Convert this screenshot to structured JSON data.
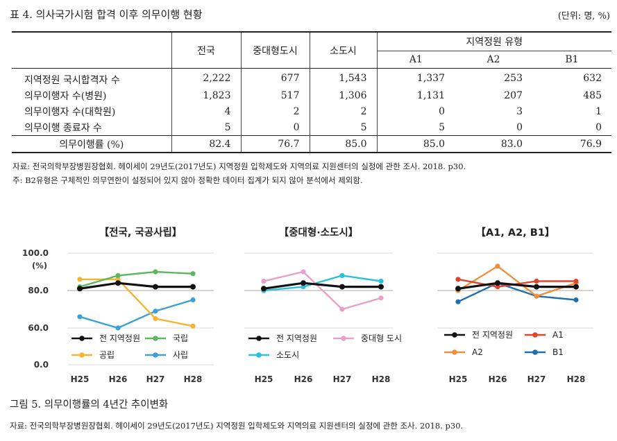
{
  "table": {
    "title": "표 4. 의사국가시험 합격 이후 의무이행 현황",
    "unit": "(단위: 명, %)",
    "headers": [
      "전국",
      "중대형도시",
      "소도시",
      "지역정원 유형"
    ],
    "subheaders": [
      "A1",
      "A2",
      "B1"
    ],
    "rows": [
      {
        "label": "지역정원 국시합격자 수",
        "values": [
          "2,222",
          "677",
          "1,543",
          "1,337",
          "253",
          "632"
        ]
      },
      {
        "label": "의무이행자 수(병원)",
        "values": [
          "1,823",
          "517",
          "1,306",
          "1,131",
          "207",
          "485"
        ]
      },
      {
        "label": "의무이행자 수(대학원)",
        "values": [
          "4",
          "2",
          "2",
          "0",
          "3",
          "1"
        ]
      },
      {
        "label": "의무이행 종료자 수",
        "values": [
          "5",
          "0",
          "5",
          "5",
          "0",
          "0"
        ]
      },
      {
        "label": "의무이행률 (%)",
        "values": [
          "82.4",
          "76.7",
          "85.0",
          "85.0",
          "83.0",
          "76.9"
        ]
      }
    ],
    "source": "자료: 전국의학부장병원장협회. 헤이세이 29년도(2017년도) 지역정원 입학제도와 지역의료 지원센터의 실정에 관한 조사. 2018. p30.",
    "footnote": "주: B2유형은 구체적인 의무연한이 설정되어 있지 않아 정확한 데이터 집계가 되지 않아 분석에서 제외함."
  },
  "figure": {
    "caption": "그림 5. 의무이행률의 4년간 추이변화",
    "source": "자료: 전국의학부장병원장협회. 헤이세이 29년도(2017년도) 지역정원 입학제도와 지역의료 지원센터의 실정에 관한 조사. 2018. p30.",
    "y_ticks": [
      "100.0",
      "80.0",
      "60.0",
      "0.0"
    ],
    "y_unit": "(%)"
  },
  "chart_data": [
    {
      "type": "line",
      "title": "【전국, 국공사립】",
      "categories": [
        "H25",
        "H26",
        "H27",
        "H28"
      ],
      "ylim": [
        0,
        100
      ],
      "series": [
        {
          "name": "전 지역정원",
          "color": "#111111",
          "values": [
            81,
            84,
            82,
            82
          ]
        },
        {
          "name": "국립",
          "color": "#5cb85c",
          "values": [
            82,
            88,
            90,
            89
          ]
        },
        {
          "name": "공립",
          "color": "#f5b331",
          "values": [
            86,
            86,
            65,
            61
          ]
        },
        {
          "name": "사립",
          "color": "#3ba0d8",
          "values": [
            66,
            60,
            69,
            75
          ]
        }
      ],
      "legend": [
        [
          "전 지역정원",
          "국립"
        ],
        [
          "공립",
          "사립"
        ]
      ]
    },
    {
      "type": "line",
      "title": "【중대형·소도시】",
      "categories": [
        "H25",
        "H26",
        "H27",
        "H28"
      ],
      "ylim": [
        0,
        100
      ],
      "series": [
        {
          "name": "전 지역정원",
          "color": "#111111",
          "values": [
            81,
            84,
            82,
            82
          ]
        },
        {
          "name": "중대형 도시",
          "color": "#e8a0c8",
          "values": [
            85,
            90,
            70,
            76
          ]
        },
        {
          "name": "소도시",
          "color": "#29c0dc",
          "values": [
            80,
            82,
            88,
            85
          ]
        }
      ],
      "legend": [
        [
          "전 지역정원",
          "중대형 도시"
        ],
        [
          "소도시"
        ]
      ]
    },
    {
      "type": "line",
      "title": "【A1, A2, B1】",
      "categories": [
        "H25",
        "H26",
        "H27",
        "H28"
      ],
      "ylim": [
        0,
        100
      ],
      "series": [
        {
          "name": "전 지역정원",
          "color": "#111111",
          "values": [
            81,
            84,
            82,
            82
          ]
        },
        {
          "name": "A1",
          "color": "#e0452b",
          "values": [
            86,
            82,
            85,
            85
          ]
        },
        {
          "name": "A2",
          "color": "#ef8f3a",
          "values": [
            80,
            93,
            77,
            84
          ]
        },
        {
          "name": "B1",
          "color": "#1f6fae",
          "values": [
            74,
            84,
            77,
            75
          ]
        }
      ],
      "legend": [
        [
          "전 지역정원",
          "A1"
        ],
        [
          "A2",
          "B1"
        ]
      ]
    }
  ]
}
